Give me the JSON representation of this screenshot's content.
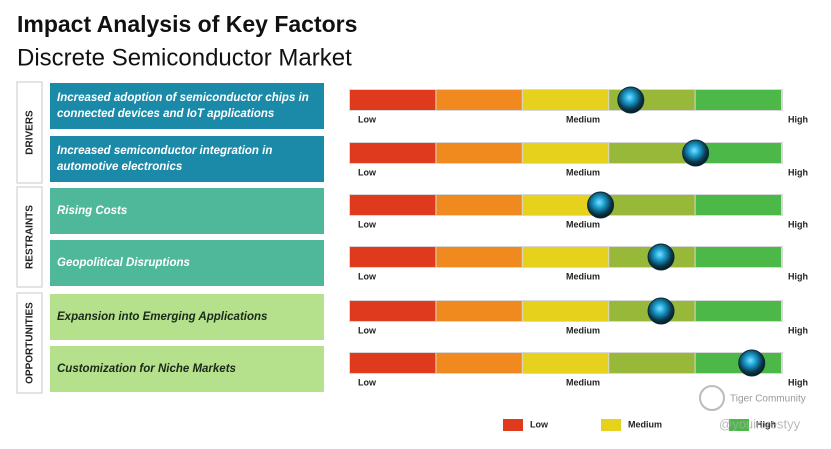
{
  "chart_data": {
    "type": "gauge",
    "title": "Impact Analysis of Key Factors",
    "subtitle": "Discrete Semiconductor Market",
    "xlim": [
      0,
      100
    ],
    "scale_labels": [
      "Low",
      "Medium",
      "High"
    ],
    "segment_colors": [
      "#e03a1e",
      "#f08a1e",
      "#e6d21c",
      "#98b83a",
      "#4cb848"
    ],
    "groups": [
      {
        "name": "DRIVERS",
        "color": "#1b8aa8",
        "text_color": "#ffffff",
        "factors": [
          {
            "label": "Increased adoption of semiconductor chips in connected devices and IoT applications",
            "value": 65
          },
          {
            "label": "Increased semiconductor integration in automotive electronics",
            "value": 80
          }
        ]
      },
      {
        "name": "RESTRAINTS",
        "color": "#4fb89b",
        "text_color": "#ffffff",
        "factors": [
          {
            "label": "Rising Costs",
            "value": 58
          },
          {
            "label": "Geopolitical Disruptions",
            "value": 72
          }
        ]
      },
      {
        "name": "OPPORTUNITIES",
        "color": "#b5e08c",
        "text_color": "#1a2a1a",
        "factors": [
          {
            "label": "Expansion into Emerging Applications",
            "value": 72
          },
          {
            "label": "Customization for Niche Markets",
            "value": 93
          }
        ]
      }
    ],
    "legend": [
      {
        "name": "Low",
        "color": "#e03a1e"
      },
      {
        "name": "Medium",
        "color": "#e6d21c"
      },
      {
        "name": "High",
        "color": "#4cb848"
      }
    ],
    "watermark": [
      "Tiger Community",
      "@youinvestyy"
    ]
  }
}
